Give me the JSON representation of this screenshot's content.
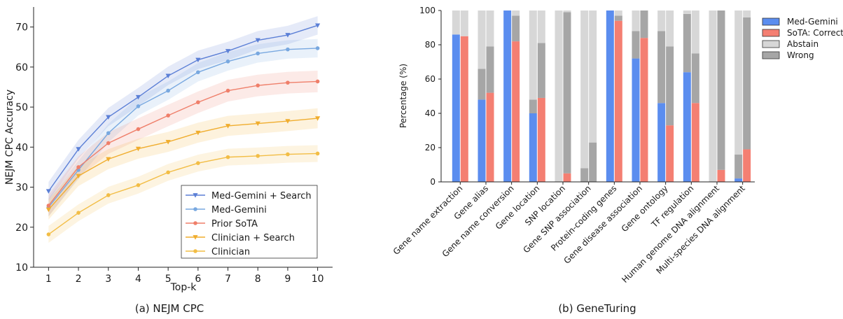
{
  "chart_data": [
    {
      "type": "line",
      "caption": "(a) NEJM CPC",
      "xlabel": "Top-k",
      "ylabel": "NEJM CPC Accuracy",
      "x": [
        1,
        2,
        3,
        4,
        5,
        6,
        7,
        8,
        9,
        10
      ],
      "xlim": [
        0.5,
        10.5
      ],
      "ylim": [
        10,
        75
      ],
      "yticks": [
        10,
        20,
        30,
        40,
        50,
        60,
        70
      ],
      "legend_position": "lower-right",
      "series": [
        {
          "name": "Med-Gemini + Search",
          "color": "#5b7fd6",
          "marker": "triangle-down",
          "values": [
            29.0,
            39.5,
            47.5,
            52.5,
            57.8,
            61.8,
            64.0,
            66.7,
            68.0,
            70.4
          ],
          "band": 2.3
        },
        {
          "name": "Med-Gemini",
          "color": "#78a8e0",
          "marker": "circle",
          "values": [
            25.0,
            34.3,
            43.5,
            50.2,
            54.1,
            58.7,
            61.4,
            63.4,
            64.4,
            64.7
          ],
          "band": 2.3
        },
        {
          "name": "Prior SoTA",
          "color": "#ef7f6a",
          "marker": "circle",
          "values": [
            25.4,
            35.0,
            41.0,
            44.5,
            47.9,
            51.2,
            54.1,
            55.4,
            56.1,
            56.4
          ],
          "band": 2.7
        },
        {
          "name": "Clinician + Search",
          "color": "#f0ad2e",
          "marker": "triangle-down",
          "values": [
            24.4,
            32.8,
            37.0,
            39.6,
            41.3,
            43.6,
            45.3,
            45.9,
            46.5,
            47.2
          ],
          "band": 2.5
        },
        {
          "name": "Clinician",
          "color": "#f2bd45",
          "marker": "circle",
          "values": [
            18.2,
            23.6,
            28.0,
            30.5,
            33.7,
            36.0,
            37.5,
            37.8,
            38.2,
            38.4
          ],
          "band": 2.1
        }
      ]
    },
    {
      "type": "bar",
      "stacked": true,
      "caption": "(b) GeneTuring",
      "ylabel": "Percentage (%)",
      "ylim": [
        0,
        100
      ],
      "yticks": [
        0,
        20,
        40,
        60,
        80,
        100
      ],
      "legend_position": "right",
      "categories": [
        "Gene name extraction",
        "Gene alias",
        "Gene name conversion",
        "Gene location",
        "SNP location",
        "Gene SNP association",
        "Protein-coding genes",
        "Gene disease association",
        "Gene ontology",
        "TF regulation",
        "Human genome DNA alignment",
        "Multi-species DNA alignment"
      ],
      "groups": [
        {
          "name": "Med-Gemini",
          "correct": [
            86,
            48,
            100,
            40,
            0,
            0,
            100,
            72,
            46,
            64,
            0,
            2
          ],
          "abstain": [
            0,
            18,
            0,
            8,
            0,
            8,
            0,
            16,
            42,
            34,
            0,
            14
          ]
        },
        {
          "name": "SoTA",
          "correct": [
            85,
            52,
            82,
            49,
            5,
            0,
            94,
            84,
            33,
            46,
            7,
            19
          ],
          "abstain": [
            0,
            27,
            15,
            32,
            94,
            23,
            3,
            16,
            46,
            29,
            93,
            77
          ]
        }
      ],
      "legend": [
        "Med-Gemini",
        "SoTA: Correct",
        "Abstain",
        "Wrong"
      ],
      "colors": {
        "med_gemini": "#5b8def",
        "sota": "#f47f72",
        "abstain": "#a6a6a6",
        "wrong": "#d7d7d7"
      }
    }
  ]
}
